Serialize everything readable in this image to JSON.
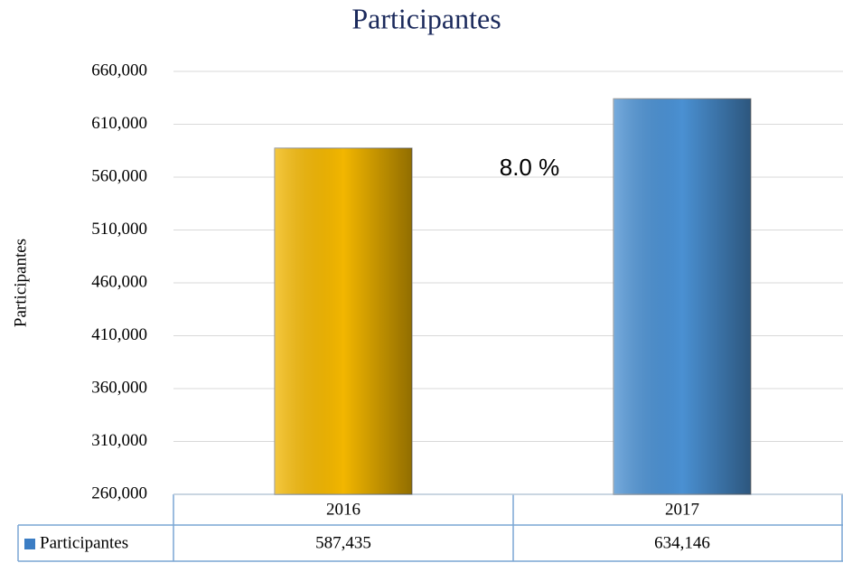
{
  "chart_data": {
    "type": "bar",
    "title": "Participantes",
    "y_label": "Participantes",
    "annotation": "8.0 %",
    "categories": [
      "2016",
      "2017"
    ],
    "series": [
      {
        "name": "Participantes",
        "color": "#3b7dc4",
        "colors": [
          "#f2b600",
          "#4a90d2"
        ],
        "values": [
          587435,
          634146
        ],
        "value_labels": [
          "587,435",
          "634,146"
        ]
      }
    ],
    "ylim": [
      260000,
      660000
    ],
    "yticks": [
      {
        "value": 260000,
        "label": "260,000"
      },
      {
        "value": 310000,
        "label": "310,000"
      },
      {
        "value": 360000,
        "label": "360,000"
      },
      {
        "value": 410000,
        "label": "410,000"
      },
      {
        "value": 460000,
        "label": "460,000"
      },
      {
        "value": 510000,
        "label": "510,000"
      },
      {
        "value": 560000,
        "label": "560,000"
      },
      {
        "value": 610000,
        "label": "610,000"
      },
      {
        "value": 660000,
        "label": "660,000"
      }
    ],
    "grid": true
  }
}
